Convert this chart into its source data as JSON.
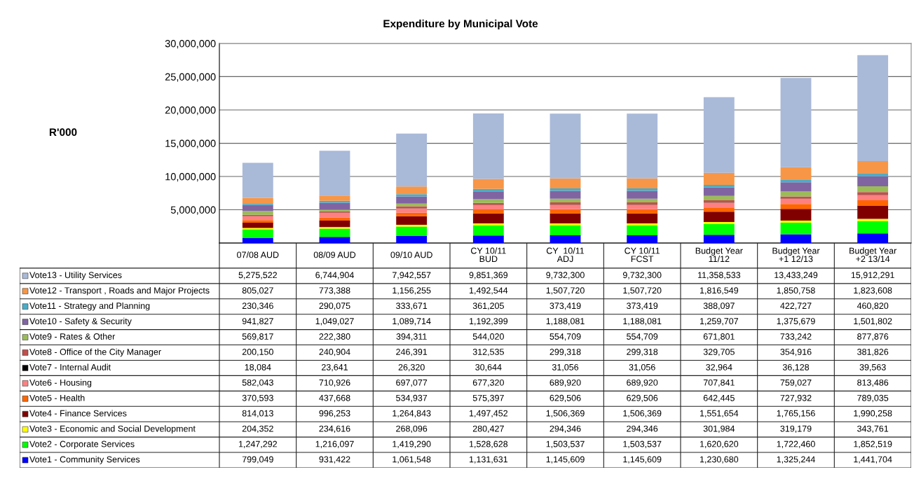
{
  "chart_data": {
    "type": "bar",
    "title": "Expenditure by Municipal Vote",
    "annotations": [
      "R'000"
    ],
    "stacked": true,
    "grid": "y",
    "legend": "bottom",
    "categories": [
      "07/08 AUD",
      "08/09 AUD",
      "09/10 AUD",
      "CY 10/11\nBUD",
      "CY  10/11\nADJ",
      "CY 10/11\nFCST",
      "Budget Year\n11/12",
      "Budget Year\n+1 12/13",
      "Budget Year\n+2 13/14"
    ],
    "ylim": [
      0,
      30000000
    ],
    "yticks": [
      {
        "value": 0,
        "label": null
      },
      {
        "value": 5000000,
        "label": "5,000,000"
      },
      {
        "value": 10000000,
        "label": "10,000,000"
      },
      {
        "value": 15000000,
        "label": "15,000,000"
      },
      {
        "value": 20000000,
        "label": "20,000,000"
      },
      {
        "value": 25000000,
        "label": "25,000,000"
      },
      {
        "value": 30000000,
        "label": "30,000,000"
      }
    ],
    "series": [
      {
        "name": "Vote1 - Community Services",
        "color": "#0000ff",
        "values": [
          799049,
          931422,
          1061548,
          1131631,
          1145609,
          1145609,
          1230680,
          1325244,
          1441704
        ],
        "value_labels": [
          "799,049",
          "931,422",
          "1,061,548",
          "1,131,631",
          "1,145,609",
          "1,145,609",
          "1,230,680",
          "1,325,244",
          "1,441,704"
        ]
      },
      {
        "name": "Vote2 - Corporate Services",
        "color": "#00ff00",
        "values": [
          1247292,
          1216097,
          1419290,
          1528628,
          1503537,
          1503537,
          1620620,
          1722460,
          1852519
        ],
        "value_labels": [
          "1,247,292",
          "1,216,097",
          "1,419,290",
          "1,528,628",
          "1,503,537",
          "1,503,537",
          "1,620,620",
          "1,722,460",
          "1,852,519"
        ]
      },
      {
        "name": "Vote3 - Economic and Social Development",
        "color": "#ffff00",
        "values": [
          204352,
          234616,
          268096,
          280427,
          294346,
          294346,
          301984,
          319179,
          343761
        ],
        "value_labels": [
          "204,352",
          "234,616",
          "268,096",
          "280,427",
          "294,346",
          "294,346",
          "301,984",
          "319,179",
          "343,761"
        ]
      },
      {
        "name": "Vote4 - Finance Services",
        "color": "#800000",
        "values": [
          814013,
          996253,
          1264843,
          1497452,
          1506369,
          1506369,
          1551654,
          1765156,
          1990258
        ],
        "value_labels": [
          "814,013",
          "996,253",
          "1,264,843",
          "1,497,452",
          "1,506,369",
          "1,506,369",
          "1,551,654",
          "1,765,156",
          "1,990,258"
        ]
      },
      {
        "name": "Vote5 - Health",
        "color": "#ff6600",
        "values": [
          370593,
          437668,
          534937,
          575397,
          629506,
          629506,
          642445,
          727932,
          789035
        ],
        "value_labels": [
          "370,593",
          "437,668",
          "534,937",
          "575,397",
          "629,506",
          "629,506",
          "642,445",
          "727,932",
          "789,035"
        ]
      },
      {
        "name": "Vote6 - Housing",
        "color": "#ff8080",
        "values": [
          582043,
          710926,
          697077,
          677320,
          689920,
          689920,
          707841,
          759027,
          813486
        ],
        "value_labels": [
          "582,043",
          "710,926",
          "697,077",
          "677,320",
          "689,920",
          "689,920",
          "707,841",
          "759,027",
          "813,486"
        ]
      },
      {
        "name": "Vote7 - Internal Audit",
        "color": "#000000",
        "values": [
          18084,
          23641,
          26320,
          30644,
          31056,
          31056,
          32964,
          36128,
          39563
        ],
        "value_labels": [
          "18,084",
          "23,641",
          "26,320",
          "30,644",
          "31,056",
          "31,056",
          "32,964",
          "36,128",
          "39,563"
        ]
      },
      {
        "name": "Vote8 - Office of the City Manager",
        "color": "#c0504d",
        "values": [
          200150,
          240904,
          246391,
          312535,
          299318,
          299318,
          329705,
          354916,
          381826
        ],
        "value_labels": [
          "200,150",
          "240,904",
          "246,391",
          "312,535",
          "299,318",
          "299,318",
          "329,705",
          "354,916",
          "381,826"
        ]
      },
      {
        "name": "Vote9 - Rates & Other",
        "color": "#9bbb59",
        "values": [
          569817,
          222380,
          394311,
          544020,
          554709,
          554709,
          671801,
          733242,
          877876
        ],
        "value_labels": [
          "569,817",
          "222,380",
          "394,311",
          "544,020",
          "554,709",
          "554,709",
          "671,801",
          "733,242",
          "877,876"
        ]
      },
      {
        "name": "Vote10 - Safety & Security",
        "color": "#8064a2",
        "values": [
          941827,
          1049027,
          1089714,
          1192399,
          1188081,
          1188081,
          1259707,
          1375679,
          1501802
        ],
        "value_labels": [
          "941,827",
          "1,049,027",
          "1,089,714",
          "1,192,399",
          "1,188,081",
          "1,188,081",
          "1,259,707",
          "1,375,679",
          "1,501,802"
        ]
      },
      {
        "name": "Vote11 - Strategy and Planning",
        "color": "#4bacc6",
        "values": [
          230346,
          290075,
          333671,
          361205,
          373419,
          373419,
          388097,
          422727,
          460820
        ],
        "value_labels": [
          "230,346",
          "290,075",
          "333,671",
          "361,205",
          "373,419",
          "373,419",
          "388,097",
          "422,727",
          "460,820"
        ]
      },
      {
        "name": "Vote12 - Transport , Roads and Major Projects",
        "color": "#f79646",
        "values": [
          805027,
          773388,
          1156255,
          1492544,
          1507720,
          1507720,
          1816549,
          1850758,
          1823608
        ],
        "value_labels": [
          "805,027",
          "773,388",
          "1,156,255",
          "1,492,544",
          "1,507,720",
          "1,507,720",
          "1,816,549",
          "1,850,758",
          "1,823,608"
        ]
      },
      {
        "name": "Vote13 - Utility Services",
        "color": "#a9b9d8",
        "values": [
          5275522,
          6744904,
          7942557,
          9851369,
          9732300,
          9732300,
          11358533,
          13433249,
          15912291
        ],
        "value_labels": [
          "5,275,522",
          "6,744,904",
          "7,942,557",
          "9,851,369",
          "9,732,300",
          "9,732,300",
          "11,358,533",
          "13,433,249",
          "15,912,291"
        ]
      }
    ]
  }
}
